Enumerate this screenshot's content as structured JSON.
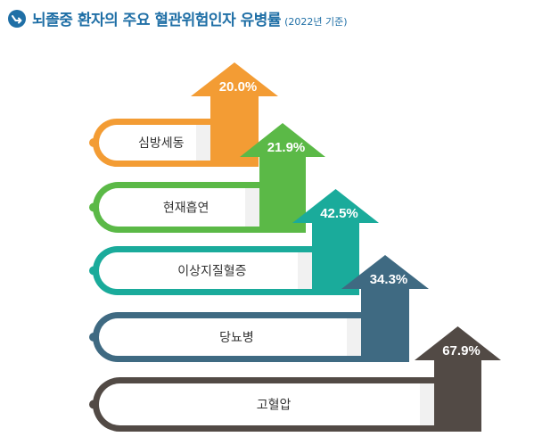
{
  "header": {
    "title": "뇌졸중 환자의 주요 혈관위험인자 유병률",
    "subtitle": "(2022년 기준)",
    "icon": "arrow-circle-icon",
    "accent_color": "#1f6fa6"
  },
  "chart_data": {
    "type": "bar",
    "title": "뇌졸중 환자의 주요 혈관위험인자 유병률",
    "subtitle": "(2022년 기준)",
    "categories": [
      "심방세동",
      "현재흡연",
      "이상지질혈증",
      "당뇨병",
      "고혈압"
    ],
    "values": [
      20.0,
      21.9,
      42.5,
      34.3,
      67.9
    ],
    "value_labels": [
      "20.0%",
      "21.9%",
      "42.5%",
      "34.3%",
      "67.9%"
    ],
    "unit": "%",
    "colors": [
      "#f39c34",
      "#5bb947",
      "#1aab9b",
      "#3f6a82",
      "#524a45"
    ]
  }
}
